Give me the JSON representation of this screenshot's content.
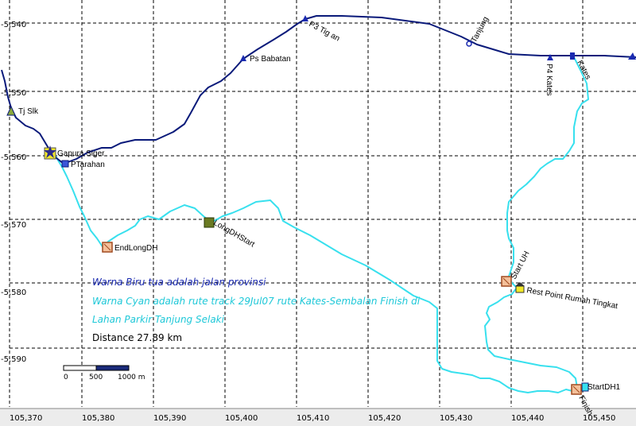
{
  "colors": {
    "road": "#0a1a7a",
    "track": "#38e0ee",
    "grid": "#000000",
    "note_road": "#1a2ab0",
    "note_track": "#1ec8d8"
  },
  "x_ticks": [
    "105,370",
    "105,380",
    "105,390",
    "105,400",
    "105,410",
    "105,420",
    "105,430",
    "105,440",
    "105,450"
  ],
  "y_ticks": [
    "-5,540",
    "-5,550",
    "-5,560",
    "-5,570",
    "-5,580",
    "-5,590"
  ],
  "waypoints": {
    "tj_slk": "Tj Slk",
    "gapura_siger": "Gapura Siger",
    "ptarahan": "PTarahan",
    "ps_babatan": "Ps Babatan",
    "p3_tigan": "P3 Tig an",
    "tanjung": "Tanjung",
    "p4_kates": "P4 Kates",
    "kates": "Kates",
    "end_long_dh": "EndLongDH",
    "long_dh_start": "LongDHStart",
    "start_uh": "Start UH",
    "rest_point": "Rest Point Rumah Tingkat",
    "start_dh1": "StartDH1",
    "finish": "Finish"
  },
  "notes": {
    "road": "Warna Biru tua adalah jalan provinsi",
    "track_line1": "Warna Cyan adalah rute track 29Jul07 rute Kates-Sembalan Finish di",
    "track_line2": "Lahan Parkir Tanjung Selaki",
    "distance": "Distance 27.89 km"
  },
  "scale_bar": {
    "labels": [
      "0",
      "500",
      "1000 m"
    ]
  },
  "icons": {
    "flag": "green-flag-icon",
    "waypoint": "orange-box-icon",
    "star": "yellow-star-icon",
    "triangle": "blue-triangle-icon"
  }
}
